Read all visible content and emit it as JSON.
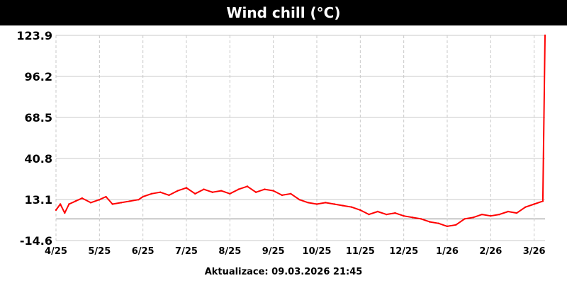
{
  "chart_data": {
    "type": "line",
    "title": "Wind chill (°C)",
    "xlabel": "",
    "ylabel": "",
    "y_ticks": [
      -14.6,
      13.1,
      40.8,
      68.5,
      96.2,
      123.9
    ],
    "ylim": [
      -14.6,
      123.9
    ],
    "x_tick_labels": [
      "4/25",
      "5/25",
      "6/25",
      "7/25",
      "8/25",
      "9/25",
      "10/25",
      "11/25",
      "12/25",
      "1/26",
      "2/26",
      "3/26"
    ],
    "x_range_months": [
      0,
      11.25
    ],
    "grid": true,
    "colors": {
      "series": "#ff0000",
      "grid": "#c8c8c8",
      "zero_line": "#808080"
    },
    "series": [
      {
        "x": [
          0.0,
          0.1,
          0.2,
          0.3,
          0.45,
          0.6,
          0.8,
          1.0,
          1.15,
          1.3,
          1.5,
          1.7,
          1.9,
          2.0,
          2.2,
          2.4,
          2.6,
          2.8,
          3.0,
          3.2,
          3.4,
          3.6,
          3.8,
          4.0,
          4.2,
          4.4,
          4.6,
          4.8,
          5.0,
          5.2,
          5.4,
          5.6,
          5.8,
          6.0,
          6.2,
          6.4,
          6.6,
          6.8,
          7.0,
          7.2,
          7.4,
          7.6,
          7.8,
          8.0,
          8.2,
          8.4,
          8.6,
          8.8,
          9.0,
          9.2,
          9.4,
          9.6,
          9.8,
          10.0,
          10.2,
          10.4,
          10.6,
          10.8,
          11.0,
          11.2,
          11.25
        ],
        "values": [
          6,
          10,
          4,
          10,
          12,
          14,
          11,
          13,
          15,
          10,
          11,
          12,
          13,
          15,
          17,
          18,
          16,
          19,
          21,
          17,
          20,
          18,
          19,
          17,
          20,
          22,
          18,
          20,
          19,
          16,
          17,
          13,
          11,
          10,
          11,
          10,
          9,
          8,
          6,
          3,
          5,
          3,
          4,
          2,
          1,
          0,
          -2,
          -3,
          -5,
          -4,
          0,
          1,
          3,
          2,
          3,
          5,
          4,
          8,
          10,
          12,
          123.9
        ]
      }
    ]
  },
  "footer": {
    "text": "Aktualizace: 09.03.2026 21:45"
  }
}
